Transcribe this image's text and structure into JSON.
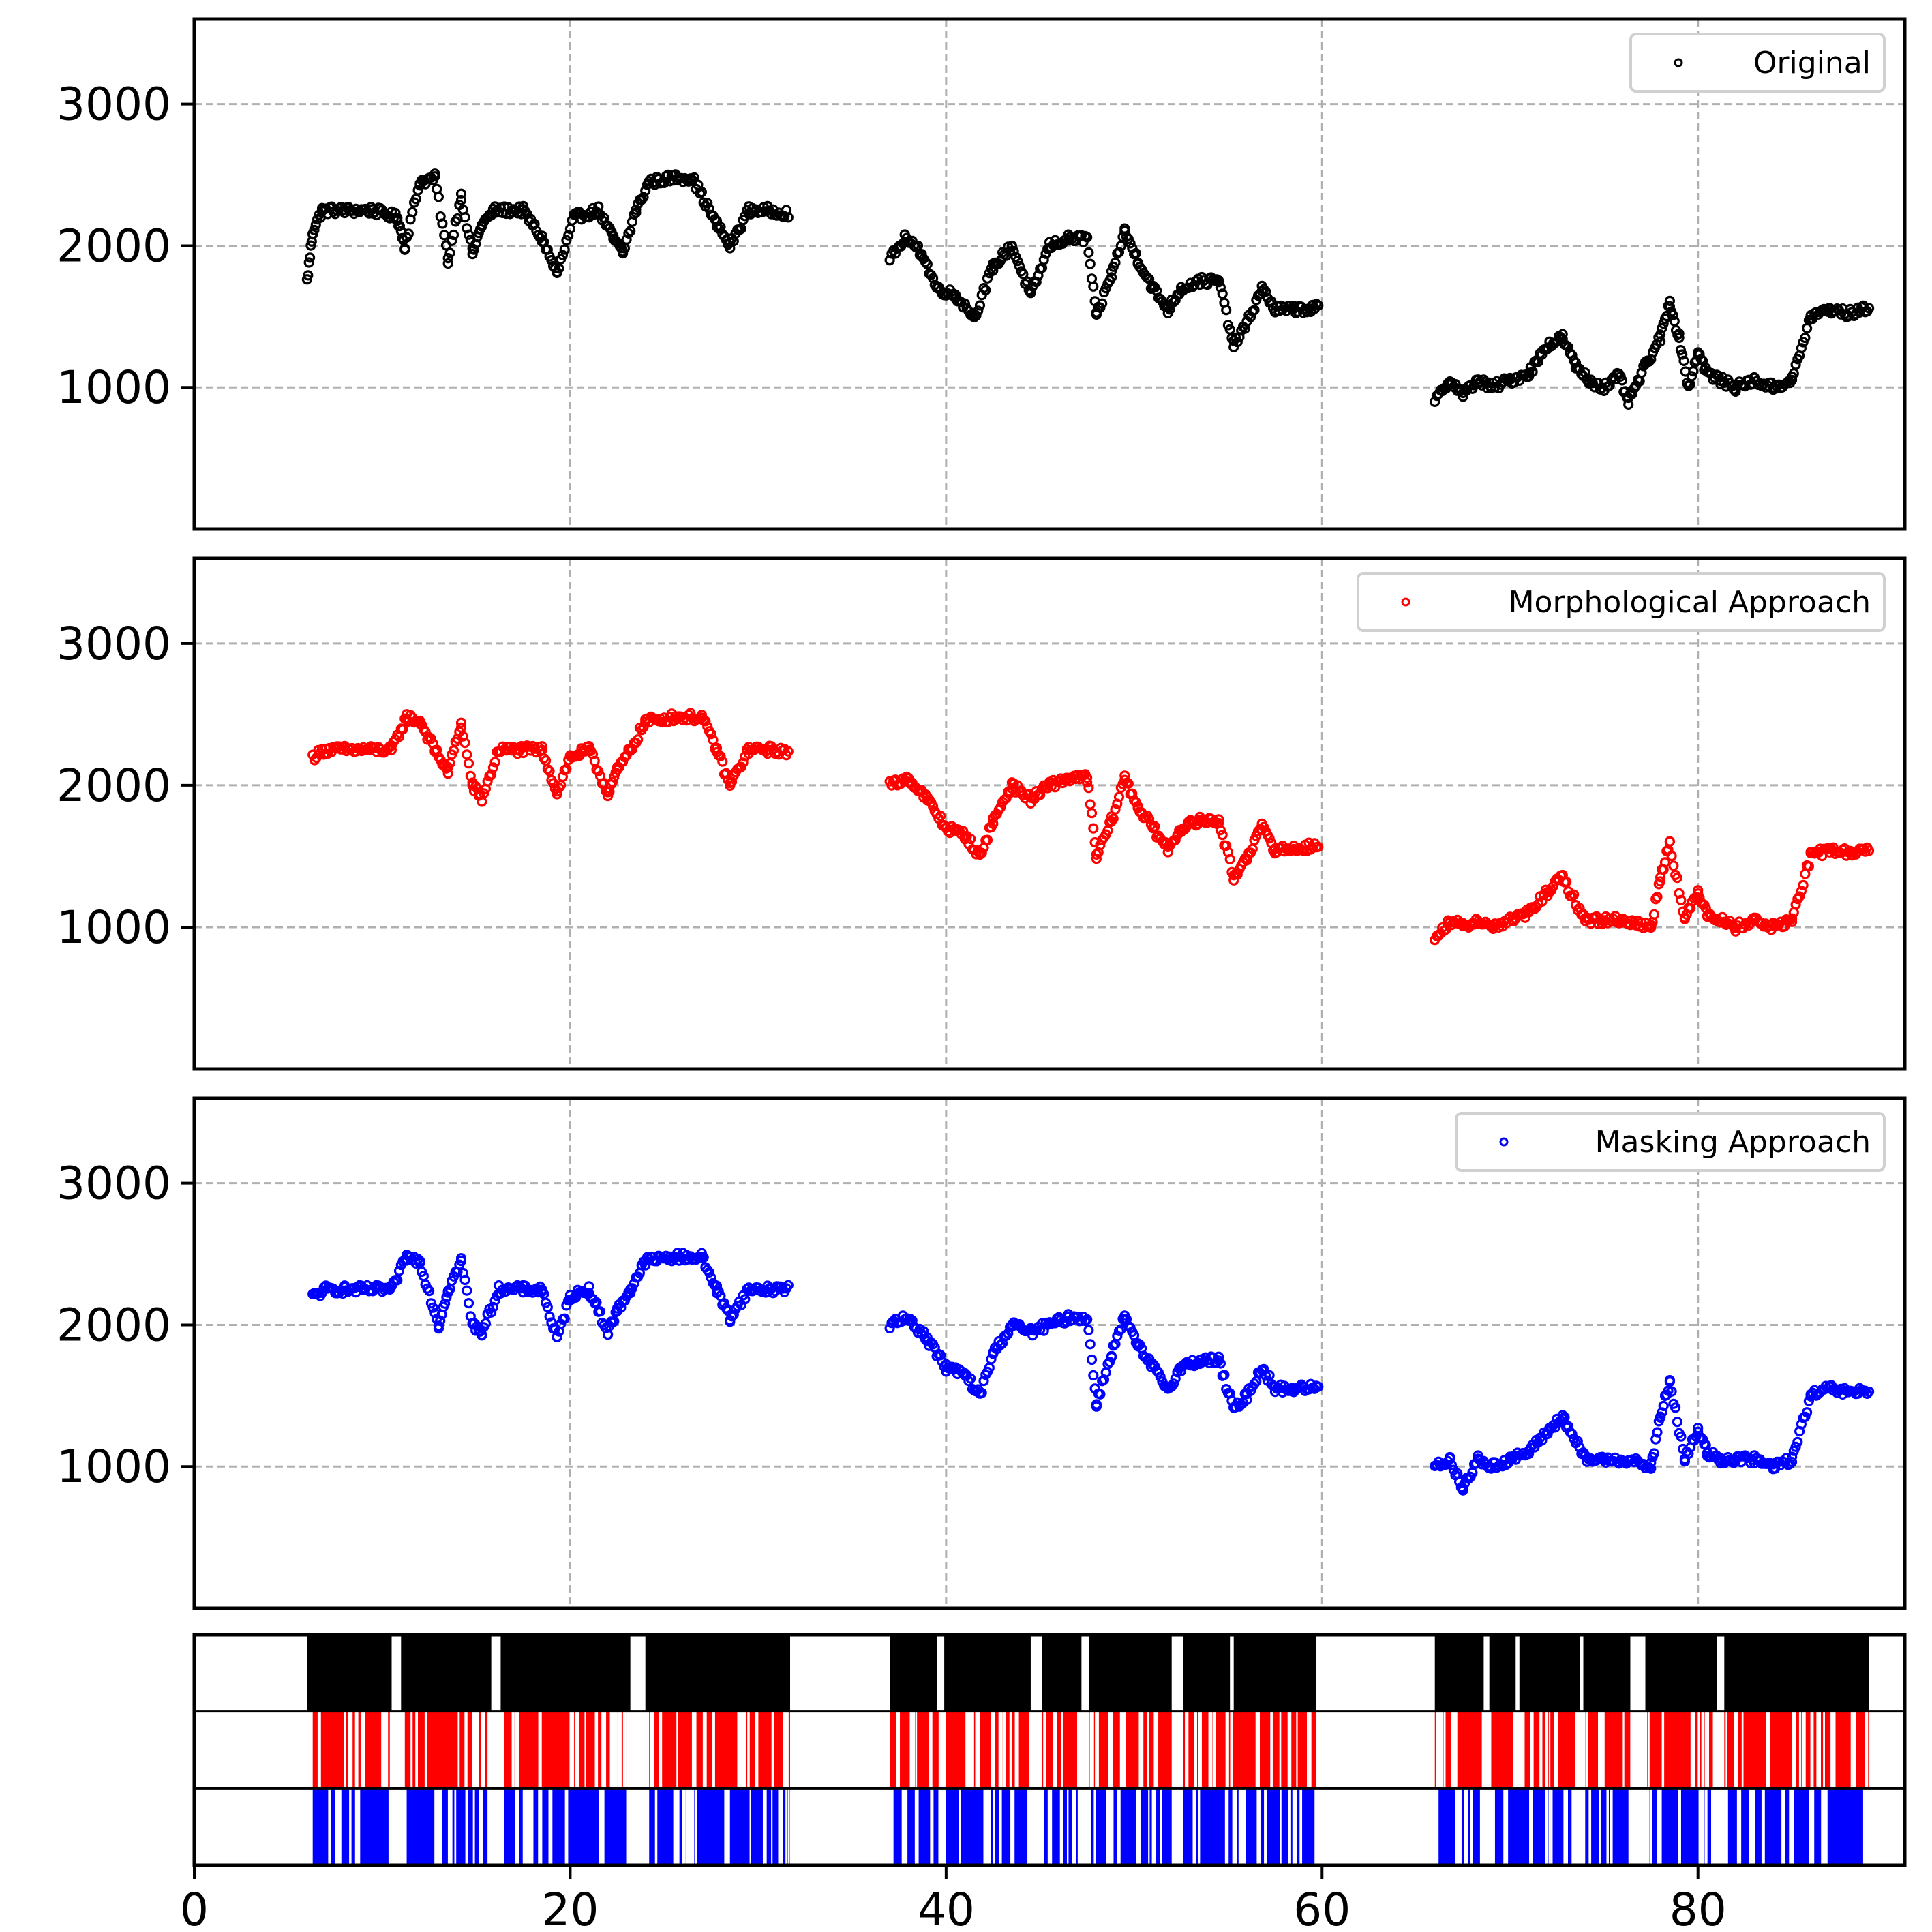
{
  "chart_data": {
    "type": "scatter",
    "xlim": [
      0,
      91
    ],
    "x_ticks": [
      0,
      20,
      40,
      60,
      80
    ],
    "x_tick_labels": [
      "0",
      "20",
      "40",
      "60",
      "80"
    ],
    "grid": true,
    "panels": [
      {
        "series_name": "Original",
        "color": "#000000",
        "legend_position": "top-right",
        "ylim": [
          0,
          3600
        ],
        "y_ticks": [
          1000,
          2000,
          3000
        ],
        "y_tick_labels": [
          "1000",
          "2000",
          "3000"
        ],
        "segments": [
          {
            "x": [
              6.0,
              6.3,
              6.8,
              8.0,
              9.5,
              10.8,
              11.2,
              12.0,
              12.8,
              13.5,
              14.2,
              14.8,
              15.3,
              16.0,
              17.5,
              18.5,
              19.3,
              20.2,
              21.5,
              22.3,
              22.8,
              23.5,
              24.2,
              25.5,
              26.5,
              27.8,
              28.5,
              29.5,
              30.5,
              31.6
            ],
            "y": [
              1750,
              2100,
              2250,
              2250,
              2250,
              2200,
              2000,
              2450,
              2480,
              1900,
              2350,
              1950,
              2150,
              2250,
              2250,
              2050,
              1800,
              2200,
              2250,
              2050,
              1950,
              2250,
              2450,
              2480,
              2480,
              2150,
              2000,
              2250,
              2250,
              2230
            ]
          },
          {
            "x": [
              37.0,
              37.8,
              38.7,
              39.5,
              40.5,
              41.5,
              42.5,
              43.5,
              44.5,
              45.5,
              46.5,
              47.5,
              48.0,
              48.8,
              49.5,
              50.2,
              51.0,
              51.8,
              52.5,
              53.5,
              54.5,
              55.3,
              56.0,
              56.8,
              57.5,
              58.5,
              59.8
            ],
            "y": [
              1900,
              2050,
              1950,
              1700,
              1650,
              1500,
              1850,
              2000,
              1650,
              2000,
              2050,
              2050,
              1500,
              1800,
              2100,
              1900,
              1700,
              1550,
              1700,
              1750,
              1750,
              1300,
              1450,
              1700,
              1550,
              1550,
              1560
            ]
          },
          {
            "x": [
              66.0,
              66.8,
              67.5,
              68.3,
              69.0,
              70.0,
              71.0,
              72.0,
              72.8,
              73.5,
              74.2,
              75.0,
              75.8,
              76.3,
              77.2,
              78.0,
              78.5,
              79.0,
              79.5,
              80.0,
              80.5,
              81.2,
              82.0,
              83.0,
              84.0,
              85.0,
              86.0,
              87.0,
              88.0,
              89.1
            ],
            "y": [
              900,
              1050,
              950,
              1050,
              1000,
              1050,
              1100,
              1300,
              1350,
              1150,
              1050,
              1000,
              1080,
              900,
              1150,
              1350,
              1600,
              1350,
              1000,
              1250,
              1100,
              1050,
              1000,
              1050,
              1000,
              1050,
              1500,
              1550,
              1520,
              1560
            ]
          }
        ]
      },
      {
        "series_name": "Morphological Approach",
        "color": "#ff0000",
        "legend_position": "top-right",
        "ylim": [
          0,
          3600
        ],
        "y_ticks": [
          1000,
          2000,
          3000
        ],
        "y_tick_labels": [
          "1000",
          "2000",
          "3000"
        ],
        "segments": [
          {
            "x": [
              6.3,
              7.0,
              8.0,
              9.0,
              10.5,
              11.3,
              12.0,
              12.8,
              13.5,
              14.2,
              14.8,
              15.3,
              16.2,
              17.5,
              18.5,
              19.3,
              20.0,
              21.0,
              22.0,
              22.5,
              23.2,
              24.0,
              25.5,
              27.0,
              27.8,
              28.5,
              29.5,
              30.5,
              31.6
            ],
            "y": [
              2200,
              2250,
              2250,
              2250,
              2250,
              2480,
              2450,
              2250,
              2100,
              2430,
              2000,
              1900,
              2250,
              2250,
              2250,
              1950,
              2200,
              2250,
              1950,
              2100,
              2250,
              2450,
              2480,
              2480,
              2250,
              2000,
              2250,
              2250,
              2240
            ]
          },
          {
            "x": [
              37.0,
              38.0,
              39.0,
              40.0,
              41.0,
              41.8,
              42.5,
              43.5,
              44.5,
              45.5,
              46.5,
              47.5,
              48.0,
              48.8,
              49.5,
              50.2,
              51.0,
              51.8,
              52.5,
              53.5,
              54.5,
              55.3,
              56.0,
              56.8,
              57.5,
              58.5,
              59.8
            ],
            "y": [
              2000,
              2050,
              1900,
              1700,
              1650,
              1500,
              1750,
              2000,
              1900,
              2000,
              2050,
              2050,
              1500,
              1750,
              2050,
              1850,
              1700,
              1550,
              1700,
              1750,
              1750,
              1350,
              1500,
              1700,
              1550,
              1550,
              1580
            ]
          },
          {
            "x": [
              66.0,
              66.8,
              67.5,
              68.3,
              69.0,
              70.0,
              71.0,
              72.0,
              72.8,
              74.0,
              75.0,
              76.0,
              77.5,
              78.0,
              78.5,
              79.3,
              80.0,
              80.5,
              81.2,
              82.0,
              83.0,
              84.0,
              85.0,
              86.0,
              87.0,
              88.0,
              89.1
            ],
            "y": [
              900,
              1050,
              1000,
              1050,
              1000,
              1050,
              1100,
              1250,
              1350,
              1050,
              1050,
              1050,
              1000,
              1350,
              1600,
              1050,
              1250,
              1100,
              1050,
              1000,
              1050,
              1000,
              1050,
              1500,
              1550,
              1520,
              1560
            ]
          }
        ]
      },
      {
        "series_name": "Masking Approach",
        "color": "#0000ff",
        "legend_position": "top-right",
        "ylim": [
          0,
          3600
        ],
        "y_ticks": [
          1000,
          2000,
          3000
        ],
        "y_tick_labels": [
          "1000",
          "2000",
          "3000"
        ],
        "segments": [
          {
            "x": [
              6.3,
              7.0,
              8.0,
              9.0,
              10.5,
              11.3,
              12.0,
              13.0,
              13.5,
              14.2,
              14.8,
              15.3,
              16.2,
              17.5,
              18.5,
              19.3,
              20.0,
              21.0,
              22.0,
              22.5,
              23.2,
              24.0,
              25.5,
              27.0,
              27.8,
              28.5,
              29.5,
              30.5,
              31.6
            ],
            "y": [
              2200,
              2250,
              2250,
              2250,
              2250,
              2480,
              2450,
              2000,
              2250,
              2450,
              2000,
              1950,
              2250,
              2250,
              2250,
              1900,
              2200,
              2250,
              1950,
              2100,
              2250,
              2450,
              2480,
              2480,
              2250,
              2050,
              2250,
              2250,
              2260
            ]
          },
          {
            "x": [
              37.0,
              38.0,
              39.0,
              40.0,
              41.0,
              41.8,
              42.5,
              43.5,
              44.5,
              45.5,
              46.5,
              47.5,
              48.0,
              48.8,
              49.5,
              50.2,
              51.0,
              51.8,
              52.5,
              53.5,
              54.5,
              55.3,
              56.0,
              56.8,
              57.5,
              58.5,
              59.8
            ],
            "y": [
              2000,
              2050,
              1900,
              1700,
              1650,
              1500,
              1800,
              2000,
              1950,
              2000,
              2050,
              2050,
              1450,
              1800,
              2050,
              1850,
              1700,
              1550,
              1700,
              1750,
              1750,
              1400,
              1500,
              1700,
              1550,
              1550,
              1560
            ]
          },
          {
            "x": [
              66.0,
              66.8,
              67.5,
              68.3,
              69.0,
              70.0,
              71.0,
              72.0,
              72.8,
              74.0,
              75.0,
              76.0,
              77.5,
              78.0,
              78.5,
              79.3,
              80.0,
              80.5,
              81.2,
              82.0,
              83.0,
              84.0,
              85.0,
              86.0,
              87.0,
              88.0,
              89.1
            ],
            "y": [
              1000,
              1050,
              850,
              1050,
              1000,
              1050,
              1100,
              1250,
              1350,
              1050,
              1050,
              1050,
              1000,
              1350,
              1600,
              1050,
              1250,
              1100,
              1050,
              1050,
              1050,
              1000,
              1050,
              1500,
              1550,
              1520,
              1540
            ]
          }
        ]
      }
    ],
    "presence_strip": {
      "rows": [
        {
          "color": "#000000",
          "intervals": [
            [
              6.0,
              10.5
            ],
            [
              11.0,
              15.8
            ],
            [
              16.3,
              23.2
            ],
            [
              24.0,
              31.7
            ],
            [
              37.0,
              39.5
            ],
            [
              39.9,
              44.5
            ],
            [
              45.1,
              47.2
            ],
            [
              47.6,
              52.0
            ],
            [
              52.6,
              55.1
            ],
            [
              55.3,
              59.7
            ],
            [
              66.0,
              68.6
            ],
            [
              68.9,
              70.3
            ],
            [
              70.5,
              73.7
            ],
            [
              73.9,
              76.4
            ],
            [
              77.2,
              81.0
            ],
            [
              81.4,
              89.1
            ]
          ]
        },
        {
          "color": "#ff0000",
          "intervals": [
            [
              6.3,
              10.4
            ],
            [
              11.2,
              15.6
            ],
            [
              16.5,
              23.0
            ],
            [
              24.2,
              31.7
            ],
            [
              37.0,
              39.6
            ],
            [
              40.0,
              44.4
            ],
            [
              45.1,
              47.0
            ],
            [
              47.6,
              52.0
            ],
            [
              52.6,
              59.7
            ],
            [
              66.0,
              68.5
            ],
            [
              69.0,
              73.5
            ],
            [
              74.0,
              76.4
            ],
            [
              77.3,
              80.8
            ],
            [
              81.4,
              89.1
            ]
          ]
        },
        {
          "color": "#0000ff",
          "intervals": [
            [
              6.3,
              10.4
            ],
            [
              11.3,
              15.6
            ],
            [
              16.5,
              23.0
            ],
            [
              24.2,
              31.7
            ],
            [
              37.2,
              39.6
            ],
            [
              40.0,
              44.4
            ],
            [
              45.2,
              47.0
            ],
            [
              47.7,
              52.0
            ],
            [
              52.6,
              59.6
            ],
            [
              66.2,
              68.4
            ],
            [
              69.2,
              73.5
            ],
            [
              74.0,
              76.3
            ],
            [
              77.4,
              80.7
            ],
            [
              81.6,
              88.9
            ]
          ]
        }
      ]
    }
  }
}
